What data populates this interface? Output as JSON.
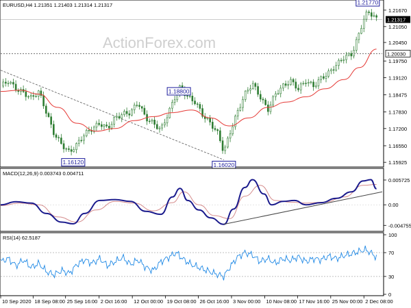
{
  "colors": {
    "candle": "#2e7d32",
    "ma": "#e53935",
    "macd_line": "#1a1a8c",
    "macd_signal": "#d48a8a",
    "rsi": "#1e88e5",
    "trendline": "#444444",
    "annotation": "#1c1c9c",
    "dotted": "#555555"
  },
  "watermark": "ActionForex.com",
  "chart_data": [
    {
      "type": "line",
      "name": "price",
      "title": "EURUSD,H4  1.21351 1.21403 1.21314 1.21317",
      "symbol": "EURUSD,H4",
      "ohlc": [
        "1.21351",
        "1.21403",
        "1.21314",
        "1.21317"
      ],
      "ylim": [
        1.158,
        1.2195
      ],
      "y_ticks": [
        "1.21670",
        "1.21050",
        "1.20450",
        "1.19750",
        "1.19120",
        "1.18475",
        "1.17830",
        "1.17200",
        "1.16550",
        "1.15925"
      ],
      "y_tick_values": [
        1.2167,
        1.2105,
        1.2045,
        1.1975,
        1.1912,
        1.18475,
        1.1783,
        1.172,
        1.1655,
        1.15925
      ],
      "current_price_label": "1.21317",
      "current_price": 1.21317,
      "level_label": "1.20030",
      "level": 1.2003,
      "annotations": [
        {
          "text": "1.16120",
          "value": 1.1612,
          "t": 0.19
        },
        {
          "text": "1.18800",
          "value": 1.188,
          "t": 0.467
        },
        {
          "text": "1.16020",
          "value": 1.1602,
          "t": 0.585
        },
        {
          "text": "1.21770",
          "value": 1.2177,
          "t": 0.962
        }
      ],
      "close_points": [
        [
          0.0,
          1.188
        ],
        [
          0.02,
          1.19
        ],
        [
          0.04,
          1.187
        ],
        [
          0.06,
          1.1855
        ],
        [
          0.08,
          1.1835
        ],
        [
          0.1,
          1.186
        ],
        [
          0.12,
          1.178
        ],
        [
          0.14,
          1.17
        ],
        [
          0.16,
          1.166
        ],
        [
          0.18,
          1.163
        ],
        [
          0.2,
          1.166
        ],
        [
          0.22,
          1.17
        ],
        [
          0.24,
          1.172
        ],
        [
          0.26,
          1.174
        ],
        [
          0.28,
          1.172
        ],
        [
          0.3,
          1.176
        ],
        [
          0.32,
          1.1775
        ],
        [
          0.34,
          1.178
        ],
        [
          0.36,
          1.182
        ],
        [
          0.38,
          1.176
        ],
        [
          0.4,
          1.174
        ],
        [
          0.42,
          1.1715
        ],
        [
          0.44,
          1.178
        ],
        [
          0.46,
          1.185
        ],
        [
          0.47,
          1.1875
        ],
        [
          0.49,
          1.184
        ],
        [
          0.51,
          1.182
        ],
        [
          0.53,
          1.177
        ],
        [
          0.55,
          1.174
        ],
        [
          0.57,
          1.17
        ],
        [
          0.585,
          1.163
        ],
        [
          0.6,
          1.17
        ],
        [
          0.62,
          1.178
        ],
        [
          0.64,
          1.185
        ],
        [
          0.66,
          1.189
        ],
        [
          0.68,
          1.184
        ],
        [
          0.7,
          1.179
        ],
        [
          0.72,
          1.185
        ],
        [
          0.74,
          1.188
        ],
        [
          0.76,
          1.19
        ],
        [
          0.78,
          1.187
        ],
        [
          0.8,
          1.19
        ],
        [
          0.82,
          1.188
        ],
        [
          0.84,
          1.191
        ],
        [
          0.86,
          1.193
        ],
        [
          0.88,
          1.196
        ],
        [
          0.9,
          1.199
        ],
        [
          0.92,
          1.2
        ],
        [
          0.94,
          1.208
        ],
        [
          0.95,
          1.213
        ],
        [
          0.962,
          1.216
        ],
        [
          0.975,
          1.215
        ],
        [
          0.985,
          1.2132
        ]
      ],
      "ma_points": [
        [
          0.0,
          1.186
        ],
        [
          0.05,
          1.1865
        ],
        [
          0.1,
          1.185
        ],
        [
          0.15,
          1.18
        ],
        [
          0.2,
          1.174
        ],
        [
          0.25,
          1.171
        ],
        [
          0.3,
          1.172
        ],
        [
          0.35,
          1.175
        ],
        [
          0.4,
          1.1765
        ],
        [
          0.45,
          1.178
        ],
        [
          0.5,
          1.179
        ],
        [
          0.55,
          1.176
        ],
        [
          0.6,
          1.173
        ],
        [
          0.65,
          1.176
        ],
        [
          0.7,
          1.18
        ],
        [
          0.75,
          1.182
        ],
        [
          0.8,
          1.184
        ],
        [
          0.85,
          1.187
        ],
        [
          0.9,
          1.1905
        ],
        [
          0.94,
          1.195
        ],
        [
          0.985,
          1.202
        ]
      ],
      "trendline": [
        [
          0.0,
          1.194
        ],
        [
          0.585,
          1.1602
        ]
      ]
    },
    {
      "type": "line",
      "name": "macd",
      "title": "MACD(12,26,9) 0.003743 0.004711",
      "params": "MACD(12,26,9)",
      "values_label": [
        "0.003743",
        "0.004711"
      ],
      "ylim": [
        -0.0055,
        0.0062
      ],
      "y_ticks": [
        "0.005725",
        "0.00",
        "-0.004755"
      ],
      "y_tick_values": [
        0.005725,
        0.0,
        -0.004755
      ],
      "macd_points": [
        [
          0.0,
          0.0
        ],
        [
          0.04,
          0.0007
        ],
        [
          0.08,
          0.0004
        ],
        [
          0.12,
          -0.002
        ],
        [
          0.16,
          -0.004
        ],
        [
          0.19,
          -0.0044
        ],
        [
          0.22,
          -0.002
        ],
        [
          0.26,
          0.001
        ],
        [
          0.3,
          0.0012
        ],
        [
          0.34,
          0.0008
        ],
        [
          0.38,
          -0.0015
        ],
        [
          0.42,
          -0.0022
        ],
        [
          0.45,
          0.0018
        ],
        [
          0.47,
          0.0038
        ],
        [
          0.49,
          0.001
        ],
        [
          0.52,
          -0.0012
        ],
        [
          0.55,
          -0.003
        ],
        [
          0.585,
          -0.0045
        ],
        [
          0.61,
          -0.001
        ],
        [
          0.64,
          0.004
        ],
        [
          0.66,
          0.0058
        ],
        [
          0.69,
          0.0025
        ],
        [
          0.71,
          0.0
        ],
        [
          0.74,
          0.0008
        ],
        [
          0.77,
          0.001
        ],
        [
          0.8,
          0.0
        ],
        [
          0.84,
          0.0005
        ],
        [
          0.88,
          0.0015
        ],
        [
          0.92,
          0.003
        ],
        [
          0.95,
          0.0055
        ],
        [
          0.97,
          0.0058
        ],
        [
          0.985,
          0.0037
        ]
      ],
      "signal_points": [
        [
          0.0,
          -0.0002
        ],
        [
          0.05,
          0.0004
        ],
        [
          0.1,
          0.0
        ],
        [
          0.15,
          -0.0028
        ],
        [
          0.2,
          -0.004
        ],
        [
          0.25,
          -0.0012
        ],
        [
          0.3,
          0.0008
        ],
        [
          0.35,
          0.0004
        ],
        [
          0.4,
          -0.0014
        ],
        [
          0.45,
          0.0005
        ],
        [
          0.48,
          0.003
        ],
        [
          0.52,
          0.0
        ],
        [
          0.56,
          -0.0025
        ],
        [
          0.6,
          -0.0032
        ],
        [
          0.64,
          0.002
        ],
        [
          0.68,
          0.0045
        ],
        [
          0.72,
          0.001
        ],
        [
          0.76,
          0.0006
        ],
        [
          0.8,
          0.0004
        ],
        [
          0.85,
          0.0006
        ],
        [
          0.9,
          0.0018
        ],
        [
          0.95,
          0.0045
        ],
        [
          0.985,
          0.0047
        ]
      ],
      "trendline": [
        [
          0.585,
          -0.0045
        ],
        [
          1.0,
          0.003
        ]
      ]
    },
    {
      "type": "line",
      "name": "rsi",
      "title": "RSI(14) 62.5187",
      "params": "RSI(14)",
      "value_label": "62.5187",
      "ylim": [
        0,
        100
      ],
      "y_ticks": [
        "100",
        "70",
        "30",
        "0"
      ],
      "y_tick_values": [
        100,
        70,
        30,
        0
      ],
      "rsi_points": [
        [
          0.0,
          55
        ],
        [
          0.02,
          60
        ],
        [
          0.04,
          48
        ],
        [
          0.06,
          58
        ],
        [
          0.08,
          45
        ],
        [
          0.1,
          52
        ],
        [
          0.12,
          38
        ],
        [
          0.14,
          33
        ],
        [
          0.16,
          40
        ],
        [
          0.18,
          35
        ],
        [
          0.2,
          50
        ],
        [
          0.22,
          58
        ],
        [
          0.24,
          52
        ],
        [
          0.26,
          60
        ],
        [
          0.28,
          48
        ],
        [
          0.3,
          55
        ],
        [
          0.32,
          62
        ],
        [
          0.34,
          50
        ],
        [
          0.36,
          58
        ],
        [
          0.38,
          45
        ],
        [
          0.4,
          40
        ],
        [
          0.42,
          55
        ],
        [
          0.44,
          62
        ],
        [
          0.46,
          70
        ],
        [
          0.48,
          58
        ],
        [
          0.5,
          50
        ],
        [
          0.52,
          45
        ],
        [
          0.54,
          40
        ],
        [
          0.56,
          35
        ],
        [
          0.585,
          30
        ],
        [
          0.6,
          45
        ],
        [
          0.62,
          62
        ],
        [
          0.64,
          70
        ],
        [
          0.66,
          66
        ],
        [
          0.68,
          55
        ],
        [
          0.7,
          60
        ],
        [
          0.72,
          52
        ],
        [
          0.74,
          60
        ],
        [
          0.76,
          57
        ],
        [
          0.78,
          63
        ],
        [
          0.8,
          55
        ],
        [
          0.82,
          60
        ],
        [
          0.84,
          58
        ],
        [
          0.86,
          64
        ],
        [
          0.88,
          60
        ],
        [
          0.9,
          65
        ],
        [
          0.92,
          68
        ],
        [
          0.94,
          72
        ],
        [
          0.955,
          75
        ],
        [
          0.97,
          70
        ],
        [
          0.985,
          62
        ]
      ]
    }
  ],
  "time_axis": {
    "labels": [
      "10 Sep 2020",
      "18 Sep 08:00",
      "25 Sep 16:00",
      "2 Oct 16:00",
      "12 Oct 00:00",
      "19 Oct 08:00",
      "26 Oct 16:00",
      "3 Nov 00:00",
      "10 Nov 08:00",
      "17 Nov 16:00",
      "25 Nov 00:00",
      "2 Dec 08:00"
    ],
    "positions": [
      0.0,
      0.085,
      0.17,
      0.258,
      0.345,
      0.432,
      0.518,
      0.605,
      0.692,
      0.778,
      0.865,
      0.952
    ]
  }
}
